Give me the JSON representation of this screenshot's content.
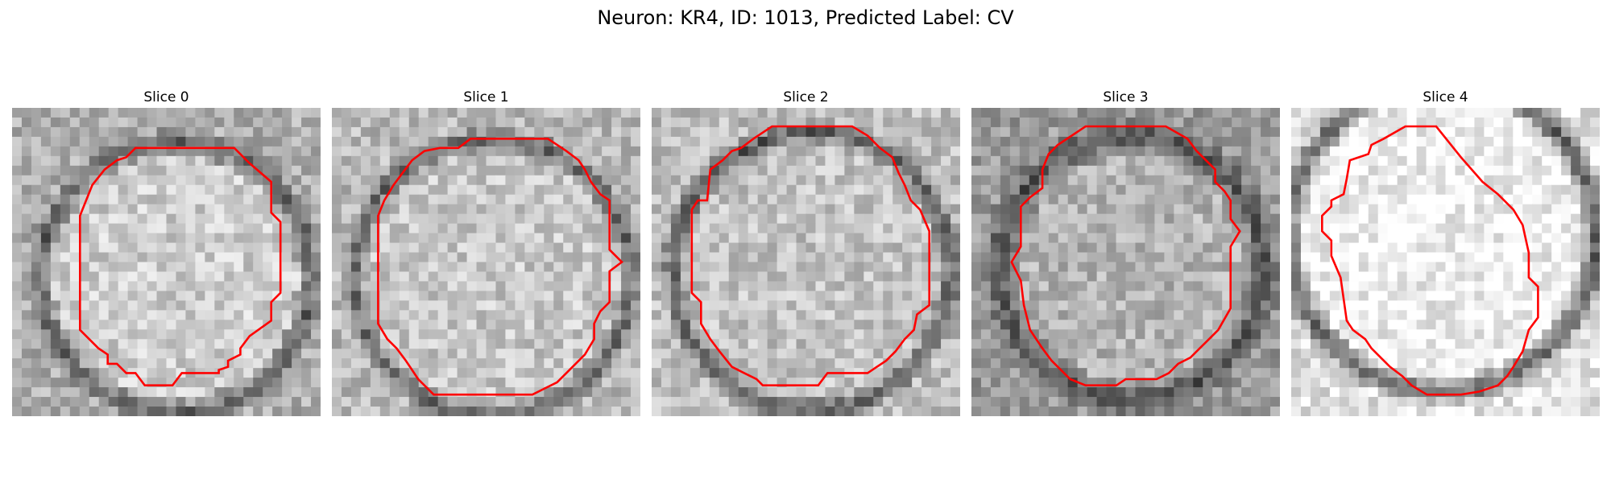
{
  "title": "Neuron: KR4, ID: 1013, Predicted Label: CV",
  "colors": {
    "contour": "#ff0000",
    "background": "#ffffff"
  },
  "slices": [
    {
      "label": "Slice 0",
      "seed": 11,
      "ring_center": [
        0.53,
        0.55
      ],
      "ring_radius": 0.44,
      "ring_width": 0.09,
      "inner_gray": 205,
      "outer_gray": 175,
      "ring_gray": 95,
      "contour": [
        [
          0.4,
          0.13
        ],
        [
          0.72,
          0.13
        ],
        [
          0.77,
          0.18
        ],
        [
          0.84,
          0.24
        ],
        [
          0.84,
          0.34
        ],
        [
          0.87,
          0.37
        ],
        [
          0.87,
          0.6
        ],
        [
          0.84,
          0.63
        ],
        [
          0.84,
          0.69
        ],
        [
          0.77,
          0.74
        ],
        [
          0.74,
          0.78
        ],
        [
          0.74,
          0.8
        ],
        [
          0.7,
          0.82
        ],
        [
          0.7,
          0.84
        ],
        [
          0.67,
          0.85
        ],
        [
          0.67,
          0.86
        ],
        [
          0.55,
          0.86
        ],
        [
          0.52,
          0.9
        ],
        [
          0.43,
          0.9
        ],
        [
          0.4,
          0.86
        ],
        [
          0.37,
          0.86
        ],
        [
          0.34,
          0.83
        ],
        [
          0.31,
          0.83
        ],
        [
          0.31,
          0.8
        ],
        [
          0.28,
          0.78
        ],
        [
          0.25,
          0.75
        ],
        [
          0.22,
          0.72
        ],
        [
          0.22,
          0.35
        ],
        [
          0.26,
          0.25
        ],
        [
          0.3,
          0.2
        ],
        [
          0.34,
          0.17
        ],
        [
          0.37,
          0.16
        ]
      ]
    },
    {
      "label": "Slice 1",
      "seed": 23,
      "ring_center": [
        0.52,
        0.55
      ],
      "ring_radius": 0.45,
      "ring_width": 0.09,
      "inner_gray": 200,
      "outer_gray": 185,
      "ring_gray": 100,
      "contour": [
        [
          0.45,
          0.1
        ],
        [
          0.7,
          0.1
        ],
        [
          0.76,
          0.14
        ],
        [
          0.8,
          0.17
        ],
        [
          0.82,
          0.2
        ],
        [
          0.84,
          0.24
        ],
        [
          0.87,
          0.28
        ],
        [
          0.9,
          0.3
        ],
        [
          0.9,
          0.46
        ],
        [
          0.94,
          0.5
        ],
        [
          0.9,
          0.53
        ],
        [
          0.9,
          0.63
        ],
        [
          0.87,
          0.66
        ],
        [
          0.85,
          0.7
        ],
        [
          0.85,
          0.75
        ],
        [
          0.82,
          0.8
        ],
        [
          0.79,
          0.83
        ],
        [
          0.76,
          0.86
        ],
        [
          0.73,
          0.89
        ],
        [
          0.69,
          0.91
        ],
        [
          0.65,
          0.93
        ],
        [
          0.33,
          0.93
        ],
        [
          0.28,
          0.88
        ],
        [
          0.26,
          0.85
        ],
        [
          0.24,
          0.82
        ],
        [
          0.21,
          0.78
        ],
        [
          0.18,
          0.75
        ],
        [
          0.15,
          0.7
        ],
        [
          0.15,
          0.35
        ],
        [
          0.17,
          0.3
        ],
        [
          0.2,
          0.25
        ],
        [
          0.23,
          0.21
        ],
        [
          0.26,
          0.17
        ],
        [
          0.3,
          0.14
        ],
        [
          0.35,
          0.13
        ],
        [
          0.41,
          0.13
        ]
      ]
    },
    {
      "label": "Slice 2",
      "seed": 37,
      "ring_center": [
        0.52,
        0.53
      ],
      "ring_radius": 0.45,
      "ring_width": 0.09,
      "inner_gray": 195,
      "outer_gray": 190,
      "ring_gray": 85,
      "contour": [
        [
          0.39,
          0.06
        ],
        [
          0.65,
          0.06
        ],
        [
          0.7,
          0.09
        ],
        [
          0.74,
          0.13
        ],
        [
          0.78,
          0.16
        ],
        [
          0.8,
          0.21
        ],
        [
          0.82,
          0.25
        ],
        [
          0.84,
          0.3
        ],
        [
          0.87,
          0.33
        ],
        [
          0.9,
          0.4
        ],
        [
          0.9,
          0.64
        ],
        [
          0.86,
          0.67
        ],
        [
          0.85,
          0.72
        ],
        [
          0.82,
          0.75
        ],
        [
          0.79,
          0.79
        ],
        [
          0.76,
          0.82
        ],
        [
          0.73,
          0.84
        ],
        [
          0.7,
          0.86
        ],
        [
          0.57,
          0.86
        ],
        [
          0.54,
          0.9
        ],
        [
          0.36,
          0.9
        ],
        [
          0.34,
          0.88
        ],
        [
          0.3,
          0.86
        ],
        [
          0.26,
          0.84
        ],
        [
          0.22,
          0.79
        ],
        [
          0.19,
          0.75
        ],
        [
          0.16,
          0.7
        ],
        [
          0.16,
          0.63
        ],
        [
          0.13,
          0.6
        ],
        [
          0.13,
          0.33
        ],
        [
          0.15,
          0.3
        ],
        [
          0.18,
          0.3
        ],
        [
          0.19,
          0.2
        ],
        [
          0.23,
          0.17
        ],
        [
          0.26,
          0.14
        ],
        [
          0.29,
          0.13
        ],
        [
          0.33,
          0.1
        ]
      ]
    },
    {
      "label": "Slice 3",
      "seed": 53,
      "ring_center": [
        0.52,
        0.52
      ],
      "ring_radius": 0.43,
      "ring_width": 0.12,
      "inner_gray": 180,
      "outer_gray": 155,
      "ring_gray": 80,
      "contour": [
        [
          0.37,
          0.06
        ],
        [
          0.63,
          0.06
        ],
        [
          0.7,
          0.1
        ],
        [
          0.73,
          0.14
        ],
        [
          0.76,
          0.17
        ],
        [
          0.79,
          0.2
        ],
        [
          0.79,
          0.24
        ],
        [
          0.82,
          0.27
        ],
        [
          0.84,
          0.3
        ],
        [
          0.84,
          0.36
        ],
        [
          0.87,
          0.4
        ],
        [
          0.84,
          0.45
        ],
        [
          0.84,
          0.65
        ],
        [
          0.8,
          0.72
        ],
        [
          0.77,
          0.75
        ],
        [
          0.74,
          0.78
        ],
        [
          0.71,
          0.81
        ],
        [
          0.67,
          0.83
        ],
        [
          0.64,
          0.86
        ],
        [
          0.6,
          0.88
        ],
        [
          0.5,
          0.88
        ],
        [
          0.47,
          0.9
        ],
        [
          0.37,
          0.9
        ],
        [
          0.32,
          0.88
        ],
        [
          0.29,
          0.85
        ],
        [
          0.26,
          0.82
        ],
        [
          0.23,
          0.78
        ],
        [
          0.19,
          0.72
        ],
        [
          0.17,
          0.64
        ],
        [
          0.16,
          0.56
        ],
        [
          0.13,
          0.5
        ],
        [
          0.16,
          0.45
        ],
        [
          0.16,
          0.32
        ],
        [
          0.19,
          0.29
        ],
        [
          0.23,
          0.26
        ],
        [
          0.23,
          0.2
        ],
        [
          0.25,
          0.15
        ],
        [
          0.28,
          0.12
        ]
      ]
    },
    {
      "label": "Slice 4",
      "seed": 71,
      "ring_center": [
        0.49,
        0.42
      ],
      "ring_radius": 0.5,
      "ring_width": 0.1,
      "inner_gray": 240,
      "outer_gray": 225,
      "ring_gray": 90,
      "contour": [
        [
          0.37,
          0.06
        ],
        [
          0.47,
          0.06
        ],
        [
          0.55,
          0.16
        ],
        [
          0.62,
          0.24
        ],
        [
          0.67,
          0.28
        ],
        [
          0.72,
          0.33
        ],
        [
          0.75,
          0.38
        ],
        [
          0.77,
          0.47
        ],
        [
          0.77,
          0.55
        ],
        [
          0.8,
          0.58
        ],
        [
          0.8,
          0.68
        ],
        [
          0.77,
          0.72
        ],
        [
          0.75,
          0.79
        ],
        [
          0.72,
          0.84
        ],
        [
          0.7,
          0.87
        ],
        [
          0.67,
          0.9
        ],
        [
          0.61,
          0.92
        ],
        [
          0.55,
          0.93
        ],
        [
          0.44,
          0.93
        ],
        [
          0.39,
          0.9
        ],
        [
          0.36,
          0.87
        ],
        [
          0.32,
          0.84
        ],
        [
          0.29,
          0.81
        ],
        [
          0.26,
          0.78
        ],
        [
          0.24,
          0.75
        ],
        [
          0.2,
          0.72
        ],
        [
          0.18,
          0.69
        ],
        [
          0.17,
          0.62
        ],
        [
          0.16,
          0.55
        ],
        [
          0.13,
          0.48
        ],
        [
          0.13,
          0.43
        ],
        [
          0.1,
          0.4
        ],
        [
          0.1,
          0.35
        ],
        [
          0.13,
          0.32
        ],
        [
          0.13,
          0.3
        ],
        [
          0.17,
          0.28
        ],
        [
          0.18,
          0.23
        ],
        [
          0.19,
          0.17
        ],
        [
          0.25,
          0.15
        ],
        [
          0.26,
          0.12
        ],
        [
          0.3,
          0.1
        ]
      ]
    }
  ]
}
